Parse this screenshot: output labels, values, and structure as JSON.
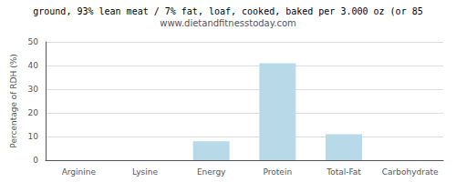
{
  "chart_data": {
    "type": "bar",
    "title": "ground, 93% lean meat / 7% fat, loaf, cooked, baked per 3.000 oz (or 85",
    "subtitle": "www.dietandfitnesstoday.com",
    "ylabel": "Percentage of RDH (%)",
    "categories": [
      "Arginine",
      "Lysine",
      "Energy",
      "Protein",
      "Total-Fat",
      "Carbohydrate"
    ],
    "values": [
      0,
      0,
      8,
      41,
      11,
      0
    ],
    "color": "#b8d9e8",
    "ylim": [
      0,
      50
    ],
    "yticks": [
      0,
      10,
      20,
      30,
      40,
      50
    ],
    "grid": true
  }
}
